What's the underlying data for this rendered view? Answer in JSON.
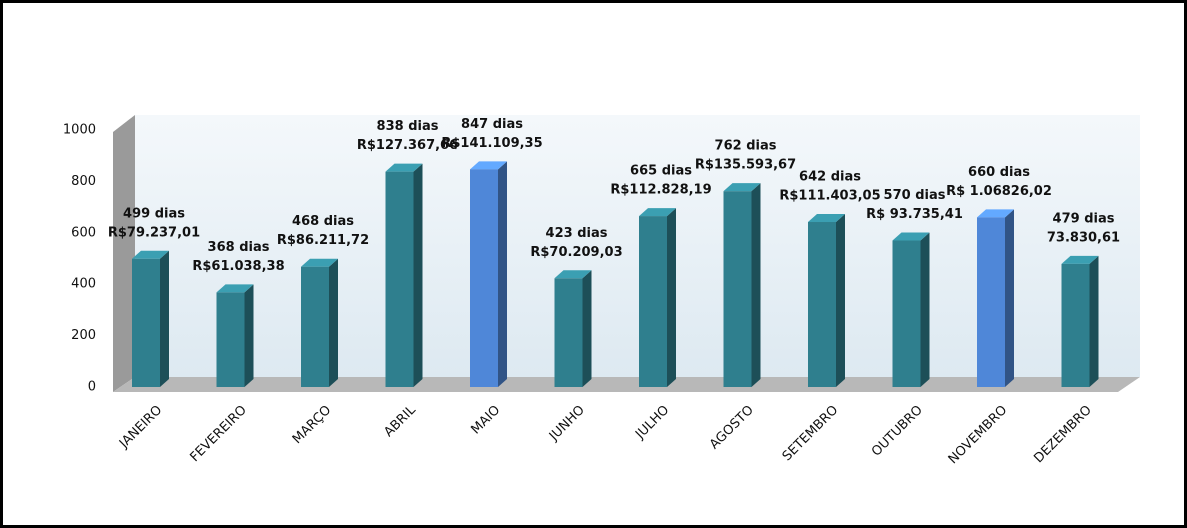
{
  "chart_data": {
    "type": "bar3d",
    "categories": [
      "JANEIRO",
      "FEVEREIRO",
      "MARÇO",
      "ABRIL",
      "MAIO",
      "JUNHO",
      "JULHO",
      "AGOSTO",
      "SETEMBRO",
      "OUTUBRO",
      "NOVEMBRO",
      "DEZEMBRO"
    ],
    "values": [
      499,
      368,
      468,
      838,
      847,
      423,
      665,
      762,
      642,
      570,
      660,
      479
    ],
    "value_labels": [
      "499 dias",
      "368 dias",
      "468 dias",
      "838 dias",
      "847 dias",
      "423 dias",
      "665 dias",
      "762 dias",
      "642 dias",
      "570 dias",
      "660 dias",
      "479 dias"
    ],
    "amount_labels": [
      "R$79.237,01",
      "R$61.038,38",
      "R$86.211,72",
      "R$127.367,66",
      "R$141.109,35",
      "R$70.209,03",
      "R$112.828,19",
      "R$135.593,67",
      "R$111.403,05",
      "R$ 93.735,41",
      "R$ 1.06826,02",
      "73.830,61"
    ],
    "colors": [
      "#2f7f8e",
      "#2f7f8e",
      "#2f7f8e",
      "#2f7f8e",
      "#4f87d8",
      "#2f7f8e",
      "#2f7f8e",
      "#2f7f8e",
      "#2f7f8e",
      "#2f7f8e",
      "#4f87d8",
      "#2f7f8e"
    ],
    "ylim": [
      0,
      1000
    ],
    "yticks": [
      0,
      200,
      400,
      600,
      800,
      1000
    ]
  }
}
